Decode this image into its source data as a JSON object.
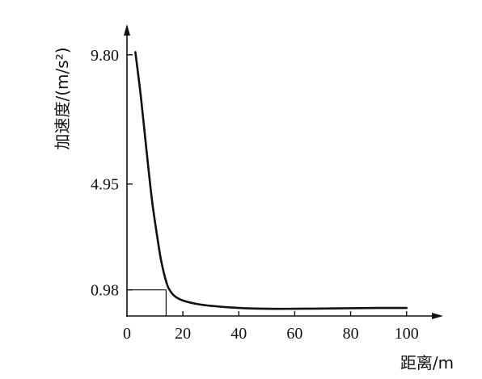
{
  "chart_data": {
    "type": "line",
    "xlabel": "距离/m",
    "ylabel": "加速度/(m/s²)",
    "xlim": [
      0,
      105
    ],
    "ylim": [
      0,
      10.4
    ],
    "x_ticks": [
      0,
      20,
      40,
      60,
      80,
      100
    ],
    "x_tick_labels": [
      "0",
      "20",
      "40",
      "60",
      "80",
      "100"
    ],
    "y_ticks": [
      0.98,
      4.95,
      9.8
    ],
    "y_tick_labels": [
      "0.98",
      "4.95",
      "9.80"
    ],
    "grid": false,
    "series": [
      {
        "x": [
          3,
          5,
          7,
          9,
          11,
          12,
          13,
          14,
          15,
          17,
          20,
          25,
          30,
          40,
          50,
          60,
          70,
          80,
          90,
          100
        ],
        "y": [
          9.9,
          8.2,
          6.2,
          4.3,
          2.85,
          2.2,
          1.7,
          1.3,
          1.02,
          0.75,
          0.58,
          0.45,
          0.38,
          0.3,
          0.27,
          0.27,
          0.28,
          0.29,
          0.3,
          0.3
        ]
      }
    ],
    "reference_lines": [
      {
        "x": 14,
        "y": 0.98
      }
    ]
  }
}
